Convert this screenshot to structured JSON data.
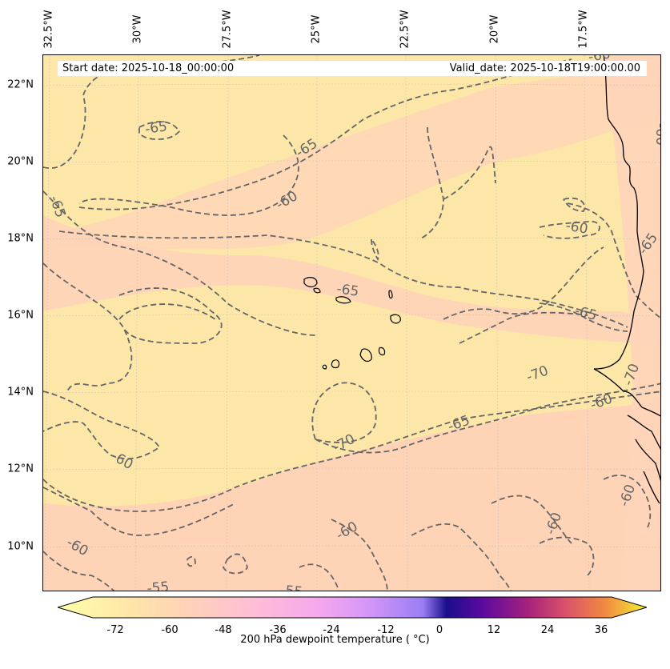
{
  "map": {
    "header": {
      "start_date": "Start date: 2025-10-18_00:00:00",
      "valid_date": "Valid_date: 2025-10-18T19:00:00.00"
    },
    "longitude_labels": [
      "32.5°W",
      "30°W",
      "27.5°W",
      "25°W",
      "22.5°W",
      "20°W",
      "17.5°W"
    ],
    "latitude_labels": [
      "22°N",
      "20°N",
      "18°N",
      "16°N",
      "14°N",
      "12°N",
      "10°N"
    ],
    "contour_labels": [
      "-65",
      "-65",
      "-60",
      "-65",
      "-65",
      "-60",
      "-65",
      "-70",
      "-70",
      "-60",
      "-65",
      "-70",
      "-60",
      "-60",
      "-60",
      "-60",
      "-55",
      "-55",
      "-60",
      "-65",
      "-60",
      "-60"
    ],
    "colorbar": {
      "title": "200 hPa dewpoint temperature ( °C)",
      "ticks": [
        "-72",
        "-60",
        "-48",
        "-36",
        "-24",
        "-12",
        "0",
        "12",
        "24",
        "36"
      ],
      "colors": [
        "#ffffa8",
        "#ffe0a8",
        "#ffd0b8",
        "#ffb8d8",
        "#f0a8f0",
        "#b890f8",
        "#30108c",
        "#7a0cae",
        "#d24e6c",
        "#f08c3c",
        "#f8f830"
      ]
    },
    "colors": {
      "field_warm": "#ffd6b8",
      "field_cool": "#fde7a6",
      "contour": "#666666"
    }
  }
}
